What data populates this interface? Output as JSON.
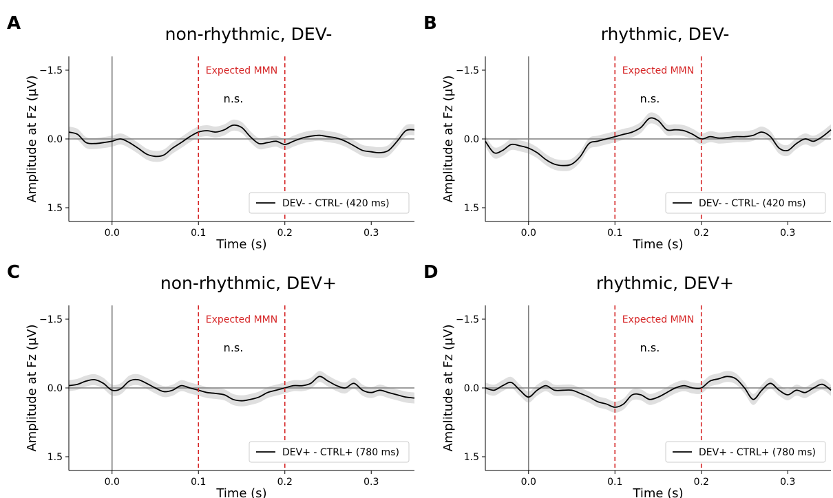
{
  "chart_data": [
    {
      "panel_label": "A",
      "type": "line",
      "title": "non-rhythmic, DEV-",
      "xlabel": "Time (s)",
      "ylabel": "Amplitude at Fz (µV)",
      "xlim": [
        -0.05,
        0.35
      ],
      "ylim": [
        -1.8,
        1.8
      ],
      "y_inverted": true,
      "xticks": [
        0.0,
        0.1,
        0.2,
        0.3
      ],
      "xtick_labels": [
        "0.0",
        "0.1",
        "0.2",
        "0.3"
      ],
      "yticks": [
        -1.5,
        0.0,
        1.5
      ],
      "ytick_labels": [
        "−1.5",
        "0.0",
        "1.5"
      ],
      "vlines": [
        0.1,
        0.2
      ],
      "vline_color": "#d62728",
      "annotation_mmn": "Expected MMN",
      "annotation_sig": "n.s.",
      "legend_label": "DEV- - CTRL- (420 ms)",
      "legend_position": "lower right",
      "series": [
        {
          "name": "DEV- - CTRL- (420 ms)",
          "color": "#000000",
          "band_color": "#d9d9d9",
          "band_width": 0.12,
          "x": [
            -0.05,
            -0.04,
            -0.03,
            -0.02,
            -0.01,
            0.0,
            0.01,
            0.02,
            0.03,
            0.04,
            0.05,
            0.06,
            0.07,
            0.08,
            0.09,
            0.1,
            0.11,
            0.12,
            0.13,
            0.14,
            0.15,
            0.16,
            0.17,
            0.18,
            0.19,
            0.2,
            0.21,
            0.22,
            0.23,
            0.24,
            0.25,
            0.26,
            0.27,
            0.28,
            0.29,
            0.3,
            0.31,
            0.32,
            0.33,
            0.34,
            0.35
          ],
          "y": [
            -0.15,
            -0.1,
            0.08,
            0.1,
            0.08,
            0.05,
            0.0,
            0.08,
            0.2,
            0.33,
            0.38,
            0.35,
            0.2,
            0.08,
            -0.05,
            -0.15,
            -0.18,
            -0.15,
            -0.2,
            -0.3,
            -0.25,
            -0.05,
            0.1,
            0.08,
            0.05,
            0.12,
            0.05,
            -0.02,
            -0.06,
            -0.08,
            -0.05,
            -0.02,
            0.05,
            0.15,
            0.25,
            0.28,
            0.3,
            0.25,
            0.05,
            -0.18,
            -0.2
          ]
        }
      ]
    },
    {
      "panel_label": "B",
      "type": "line",
      "title": "rhythmic, DEV-",
      "xlabel": "Time (s)",
      "ylabel": "Amplitude at Fz (µV)",
      "xlim": [
        -0.05,
        0.35
      ],
      "ylim": [
        -1.8,
        1.8
      ],
      "y_inverted": true,
      "xticks": [
        0.0,
        0.1,
        0.2,
        0.3
      ],
      "xtick_labels": [
        "0.0",
        "0.1",
        "0.2",
        "0.3"
      ],
      "yticks": [
        -1.5,
        0.0,
        1.5
      ],
      "ytick_labels": [
        "−1.5",
        "0.0",
        "1.5"
      ],
      "vlines": [
        0.1,
        0.2
      ],
      "vline_color": "#d62728",
      "annotation_mmn": "Expected MMN",
      "annotation_sig": "n.s.",
      "legend_label": "DEV- - CTRL- (420 ms)",
      "legend_position": "lower right",
      "series": [
        {
          "name": "DEV- - CTRL- (420 ms)",
          "color": "#000000",
          "band_color": "#d9d9d9",
          "band_width": 0.12,
          "x": [
            -0.05,
            -0.04,
            -0.03,
            -0.02,
            -0.01,
            0.0,
            0.01,
            0.02,
            0.03,
            0.04,
            0.05,
            0.06,
            0.07,
            0.08,
            0.09,
            0.1,
            0.11,
            0.12,
            0.13,
            0.14,
            0.15,
            0.16,
            0.17,
            0.18,
            0.19,
            0.2,
            0.21,
            0.22,
            0.23,
            0.24,
            0.25,
            0.26,
            0.27,
            0.28,
            0.29,
            0.3,
            0.31,
            0.32,
            0.33,
            0.34,
            0.35
          ],
          "y": [
            0.05,
            0.3,
            0.25,
            0.12,
            0.15,
            0.2,
            0.3,
            0.45,
            0.55,
            0.58,
            0.55,
            0.38,
            0.1,
            0.05,
            0.0,
            -0.05,
            -0.1,
            -0.15,
            -0.25,
            -0.45,
            -0.4,
            -0.2,
            -0.2,
            -0.18,
            -0.1,
            0.0,
            -0.05,
            -0.02,
            -0.03,
            -0.05,
            -0.05,
            -0.08,
            -0.15,
            -0.05,
            0.2,
            0.25,
            0.1,
            0.0,
            0.05,
            -0.05,
            -0.2
          ]
        }
      ]
    },
    {
      "panel_label": "C",
      "type": "line",
      "title": "non-rhythmic, DEV+",
      "xlabel": "Time (s)",
      "ylabel": "Amplitude at Fz (µV)",
      "xlim": [
        -0.05,
        0.35
      ],
      "ylim": [
        -1.8,
        1.8
      ],
      "y_inverted": true,
      "xticks": [
        0.0,
        0.1,
        0.2,
        0.3
      ],
      "xtick_labels": [
        "0.0",
        "0.1",
        "0.2",
        "0.3"
      ],
      "yticks": [
        -1.5,
        0.0,
        1.5
      ],
      "ytick_labels": [
        "−1.5",
        "0.0",
        "1.5"
      ],
      "vlines": [
        0.1,
        0.2
      ],
      "vline_color": "#d62728",
      "annotation_mmn": "Expected MMN",
      "annotation_sig": "n.s.",
      "legend_label": "DEV+ - CTRL+ (780 ms)",
      "legend_position": "lower right",
      "series": [
        {
          "name": "DEV+ - CTRL+ (780 ms)",
          "color": "#000000",
          "band_color": "#d9d9d9",
          "band_width": 0.12,
          "x": [
            -0.05,
            -0.04,
            -0.03,
            -0.02,
            -0.01,
            0.0,
            0.01,
            0.02,
            0.03,
            0.04,
            0.05,
            0.06,
            0.07,
            0.08,
            0.09,
            0.1,
            0.11,
            0.12,
            0.13,
            0.14,
            0.15,
            0.16,
            0.17,
            0.18,
            0.19,
            0.2,
            0.21,
            0.22,
            0.23,
            0.24,
            0.25,
            0.26,
            0.27,
            0.28,
            0.29,
            0.3,
            0.31,
            0.32,
            0.33,
            0.34,
            0.35
          ],
          "y": [
            -0.05,
            -0.08,
            -0.15,
            -0.18,
            -0.1,
            0.05,
            0.02,
            -0.15,
            -0.18,
            -0.1,
            0.0,
            0.08,
            0.05,
            -0.05,
            0.0,
            0.05,
            0.1,
            0.12,
            0.15,
            0.25,
            0.28,
            0.25,
            0.2,
            0.1,
            0.05,
            0.0,
            -0.05,
            -0.05,
            -0.1,
            -0.25,
            -0.15,
            -0.05,
            0.0,
            -0.1,
            0.05,
            0.1,
            0.05,
            0.1,
            0.15,
            0.2,
            0.22
          ]
        }
      ]
    },
    {
      "panel_label": "D",
      "type": "line",
      "title": "rhythmic, DEV+",
      "xlabel": "Time (s)",
      "ylabel": "Amplitude at Fz (µV)",
      "xlim": [
        -0.05,
        0.35
      ],
      "ylim": [
        -1.8,
        1.8
      ],
      "y_inverted": true,
      "xticks": [
        0.0,
        0.1,
        0.2,
        0.3
      ],
      "xtick_labels": [
        "0.0",
        "0.1",
        "0.2",
        "0.3"
      ],
      "yticks": [
        -1.5,
        0.0,
        1.5
      ],
      "ytick_labels": [
        "−1.5",
        "0.0",
        "1.5"
      ],
      "vlines": [
        0.1,
        0.2
      ],
      "vline_color": "#d62728",
      "annotation_mmn": "Expected MMN",
      "annotation_sig": "n.s.",
      "legend_label": "DEV+ - CTRL+ (780 ms)",
      "legend_position": "lower right",
      "series": [
        {
          "name": "DEV+ - CTRL+ (780 ms)",
          "color": "#000000",
          "band_color": "#d9d9d9",
          "band_width": 0.12,
          "x": [
            -0.05,
            -0.04,
            -0.03,
            -0.02,
            -0.01,
            0.0,
            0.01,
            0.02,
            0.03,
            0.04,
            0.05,
            0.06,
            0.07,
            0.08,
            0.09,
            0.1,
            0.11,
            0.12,
            0.13,
            0.14,
            0.15,
            0.16,
            0.17,
            0.18,
            0.19,
            0.2,
            0.21,
            0.22,
            0.23,
            0.24,
            0.25,
            0.26,
            0.27,
            0.28,
            0.29,
            0.3,
            0.31,
            0.32,
            0.33,
            0.34,
            0.35
          ],
          "y": [
            0.0,
            0.05,
            -0.05,
            -0.12,
            0.05,
            0.2,
            0.05,
            -0.05,
            0.05,
            0.05,
            0.05,
            0.12,
            0.2,
            0.3,
            0.35,
            0.42,
            0.35,
            0.15,
            0.15,
            0.25,
            0.2,
            0.1,
            0.0,
            -0.05,
            0.0,
            0.0,
            -0.15,
            -0.2,
            -0.25,
            -0.2,
            0.0,
            0.25,
            0.05,
            -0.1,
            0.05,
            0.15,
            0.05,
            0.1,
            0.0,
            -0.08,
            0.05
          ]
        }
      ]
    }
  ]
}
